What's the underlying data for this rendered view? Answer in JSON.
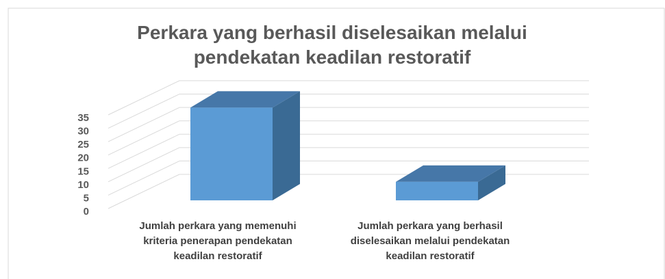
{
  "chart_data": {
    "type": "bar3d",
    "title": "Perkara yang berhasil diselesaikan melalui pendekatan keadilan restoratif",
    "categories": [
      "Jumlah perkara yang memenuhi kriteria penerapan pendekatan keadilan restoratif",
      "Jumlah perkara yang berhasil diselesaikan melalui pendekatan keadilan restoratif"
    ],
    "values": [
      35,
      7
    ],
    "color": "#5b9bd5",
    "ylim": [
      0,
      35
    ],
    "yticks": [
      0,
      5,
      10,
      15,
      20,
      25,
      30,
      35
    ],
    "grid": true
  }
}
